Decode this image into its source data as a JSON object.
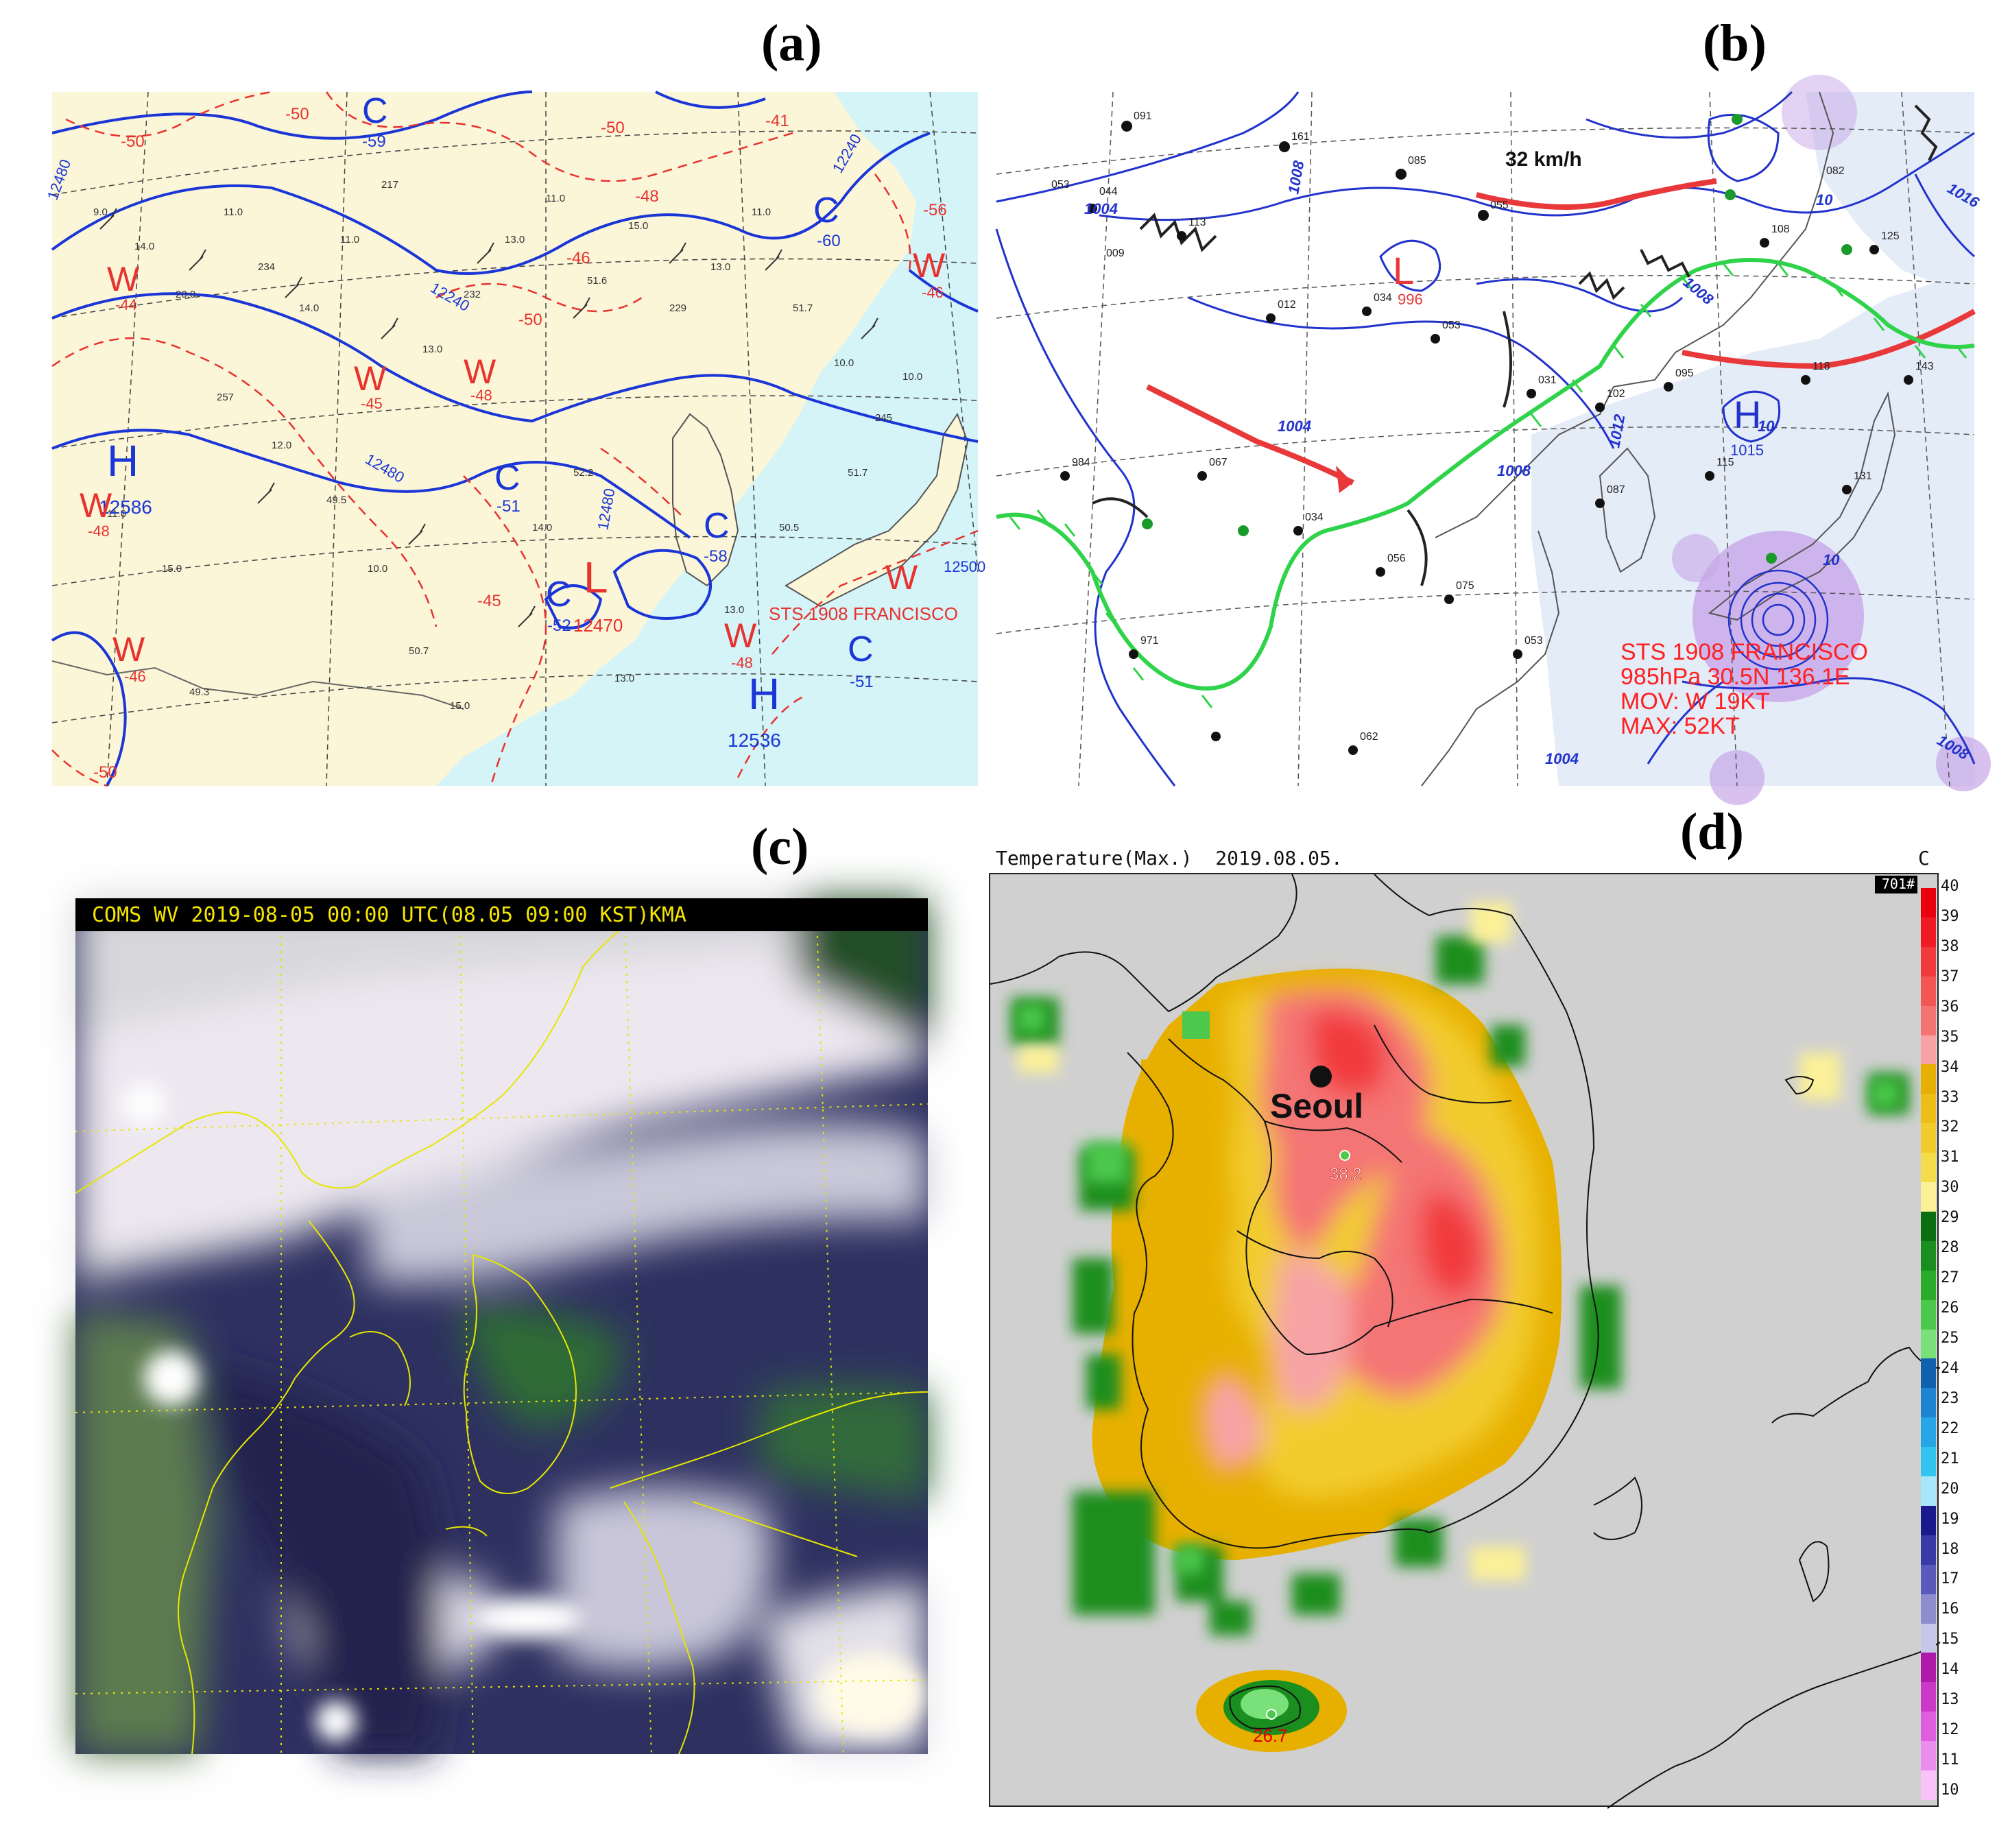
{
  "labels": {
    "a": "(a)",
    "b": "(b)",
    "c": "(c)",
    "d": "(d)"
  },
  "panel_a": {
    "systems": [
      {
        "t": "H",
        "v": "12586"
      },
      {
        "t": "H",
        "v": "12536"
      },
      {
        "t": "L",
        "v": "12470"
      },
      {
        "t": "C",
        "v": "-59"
      },
      {
        "t": "C",
        "v": "-60"
      },
      {
        "t": "C",
        "v": "-51"
      },
      {
        "t": "C",
        "v": "-58"
      },
      {
        "t": "C",
        "v": "-52"
      },
      {
        "t": "C",
        "v": "-51"
      },
      {
        "t": "W",
        "v": "-44"
      },
      {
        "t": "W",
        "v": "-45"
      },
      {
        "t": "W",
        "v": "-48"
      },
      {
        "t": "W",
        "v": "-46"
      },
      {
        "t": "W",
        "v": "-48"
      },
      {
        "t": "W",
        "v": "-48"
      },
      {
        "t": "W",
        "v": "-46"
      }
    ],
    "contour_labels": [
      "12480",
      "12240",
      "12480",
      "12240",
      "12480",
      "12500"
    ],
    "isotherm_labels": [
      "-50",
      "-50",
      "-50",
      "-48",
      "-46",
      "-41",
      "-56",
      "-50",
      "-50",
      "-45"
    ],
    "typhoon": "STS 1908 FRANCISCO",
    "colors": {
      "land": "#fbf6d8",
      "sea": "#d4f4f8",
      "contour": "#1b36d6",
      "isotherm": "#e8322e"
    }
  },
  "panel_b": {
    "lows": [
      {
        "t": "L",
        "v": "996"
      }
    ],
    "highs": [
      {
        "t": "H",
        "v": "1015"
      }
    ],
    "isobar_labels": [
      "1004",
      "1008",
      "1004",
      "1008",
      "1012",
      "1008",
      "1016",
      "1008",
      "1004",
      "10",
      "10",
      "10"
    ],
    "speed": "32 km/h",
    "typhoon": [
      "STS 1908 FRANCISCO",
      "985hPa 30.5N 136.1E",
      "MOV: W 19KT",
      "MAX: 52KT"
    ],
    "colors": {
      "isobar": "#2233cc",
      "cold_front": "#e9383a",
      "stationary": "#2fd34a",
      "typhoon_text": "#ff2020"
    }
  },
  "panel_c": {
    "header": "COMS WV 2019-08-05 00:00 UTC(08.05 09:00 KST)KMA",
    "colors": {
      "header_bg": "#000000",
      "header_text": "#f5e500",
      "coast": "#e6e600"
    }
  },
  "panel_d": {
    "title": "Temperature(Max.)  2019.08.05.",
    "unit": "C",
    "station_count": "701#",
    "city": "Seoul",
    "values": [
      "38.2",
      "26.7"
    ],
    "legend_ticks": [
      "40",
      "39",
      "38",
      "37",
      "36",
      "35",
      "34",
      "33",
      "32",
      "31",
      "30",
      "29",
      "28",
      "27",
      "26",
      "25",
      "24",
      "23",
      "22",
      "21",
      "20",
      "19",
      "18",
      "17",
      "16",
      "15",
      "14",
      "13",
      "12",
      "11",
      "10"
    ],
    "legend_colors": [
      "#e8000c",
      "#f01a24",
      "#f23a3e",
      "#f45656",
      "#f47474",
      "#f7a3a6",
      "#e7b000",
      "#edbe16",
      "#f2cc2e",
      "#f4dc4a",
      "#fbf098",
      "#0a6e12",
      "#1a8e1e",
      "#2aab2a",
      "#4cc84c",
      "#7ae07a",
      "#1060b0",
      "#1c84d0",
      "#26a6e6",
      "#34c4f2",
      "#a8e6fa",
      "#1a1a8c",
      "#3a3aa6",
      "#5a5abc",
      "#8e8ece",
      "#c6c6e6",
      "#b01aaa",
      "#cc38c6",
      "#de5ede",
      "#ec8cec",
      "#f8c4f8"
    ],
    "colors": {
      "background": "#d0d0d0"
    }
  }
}
